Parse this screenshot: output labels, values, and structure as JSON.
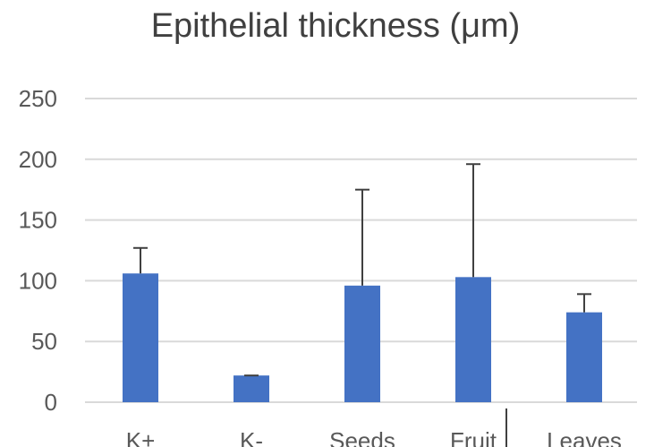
{
  "chart_data": {
    "type": "bar",
    "title": "Epithelial thickness (μm)",
    "xlabel": "",
    "ylabel": "",
    "categories": [
      "K+",
      "K-",
      "Seeds",
      "Fruit",
      "Leaves"
    ],
    "values": [
      106,
      22,
      96,
      103,
      74
    ],
    "error_plus": [
      21,
      0,
      79,
      93,
      15
    ],
    "ylim": [
      0,
      250
    ],
    "yticks": [
      0,
      50,
      100,
      150,
      200,
      250
    ],
    "grid": true,
    "legend": "none",
    "bar_color": "#4472c4",
    "grid_color": "#d9d9d9",
    "text_color": "#595959",
    "error_color": "#404040"
  }
}
